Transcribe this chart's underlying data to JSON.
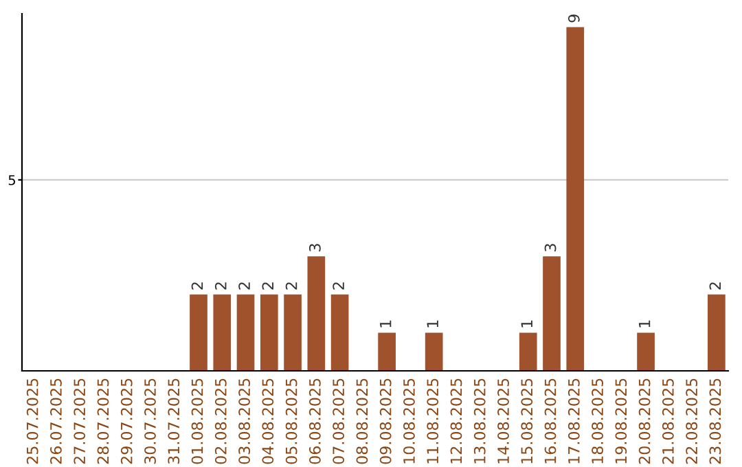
{
  "chart_data": {
    "type": "bar",
    "categories": [
      "25.07.2025",
      "26.07.2025",
      "27.07.2025",
      "28.07.2025",
      "29.07.2025",
      "30.07.2025",
      "31.07.2025",
      "01.08.2025",
      "02.08.2025",
      "03.08.2025",
      "04.08.2025",
      "05.08.2025",
      "06.08.2025",
      "07.08.2025",
      "08.08.2025",
      "09.08.2025",
      "10.08.2025",
      "11.08.2025",
      "12.08.2025",
      "13.08.2025",
      "14.08.2025",
      "15.08.2025",
      "16.08.2025",
      "17.08.2025",
      "18.08.2025",
      "19.08.2025",
      "20.08.2025",
      "21.08.2025",
      "22.08.2025",
      "23.08.2025"
    ],
    "values": [
      0,
      0,
      0,
      0,
      0,
      0,
      0,
      2,
      2,
      2,
      2,
      2,
      3,
      2,
      0,
      1,
      0,
      1,
      0,
      0,
      0,
      1,
      3,
      9,
      0,
      0,
      1,
      0,
      0,
      2
    ],
    "value_labels": [
      null,
      null,
      null,
      null,
      null,
      null,
      null,
      "2",
      "2",
      "2",
      "2",
      "2",
      "3",
      "2",
      null,
      "1",
      null,
      "1",
      null,
      null,
      null,
      "1",
      "3",
      "9",
      null,
      null,
      "1",
      null,
      null,
      "2"
    ],
    "color": "#a0522d",
    "ylim": [
      0,
      9.35
    ],
    "yticks": [
      5
    ],
    "grid": "y"
  }
}
